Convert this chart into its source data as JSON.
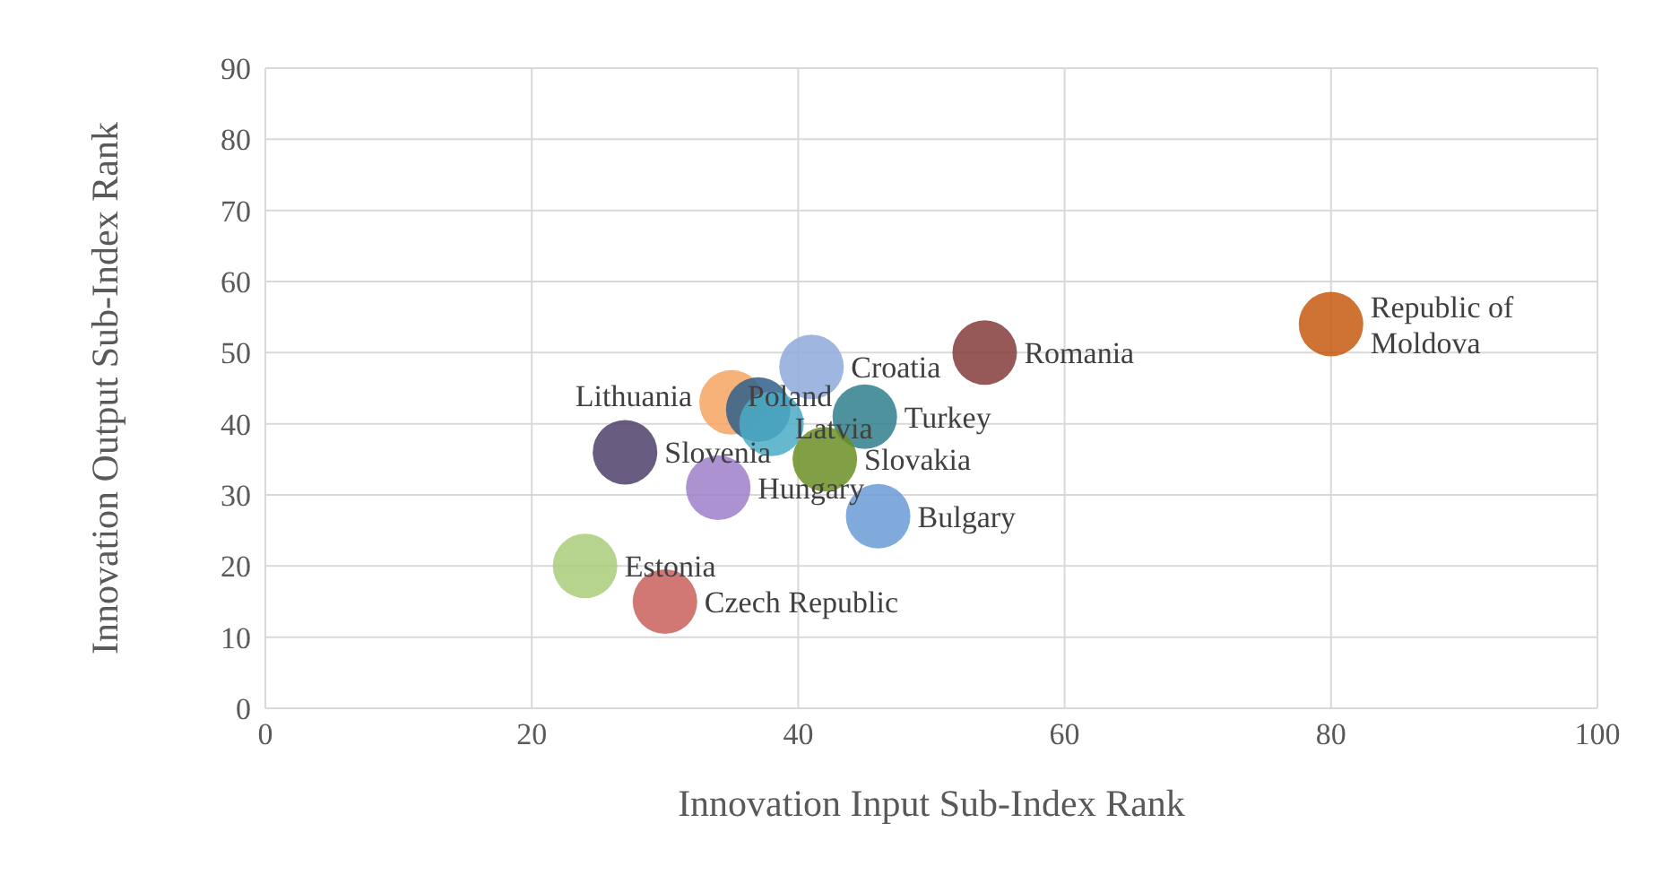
{
  "chart_data": {
    "type": "bubble",
    "xlabel": "Innovation Input Sub-Index Rank",
    "ylabel": "Innovation Output Sub-Index Rank",
    "xlim": [
      0,
      100
    ],
    "xticks": [
      0,
      20,
      40,
      60,
      80,
      100
    ],
    "ylim": [
      0,
      90
    ],
    "yticks": [
      0,
      10,
      20,
      30,
      40,
      50,
      60,
      70,
      80,
      90
    ],
    "grid": true,
    "legend": false,
    "series": [
      {
        "name": "Republic of Moldova",
        "color": "#c55a11",
        "x": [
          80
        ],
        "values": [
          54
        ],
        "sizes": [
          1
        ]
      },
      {
        "name": "Romania",
        "color": "#843c39",
        "x": [
          54
        ],
        "values": [
          50
        ],
        "sizes": [
          1
        ]
      },
      {
        "name": "Lithuania",
        "color": "#f4a460",
        "x": [
          35
        ],
        "values": [
          43
        ],
        "sizes": [
          1
        ]
      },
      {
        "name": "Croatia",
        "color": "#8eaadb",
        "x": [
          41
        ],
        "values": [
          48
        ],
        "sizes": [
          1
        ]
      },
      {
        "name": "Poland",
        "color": "#2f5f8a",
        "x": [
          37
        ],
        "values": [
          42
        ],
        "sizes": [
          1
        ]
      },
      {
        "name": "Latvia",
        "color": "#4bacc6",
        "x": [
          38
        ],
        "values": [
          40
        ],
        "sizes": [
          1
        ]
      },
      {
        "name": "Turkey",
        "color": "#2e7f8c",
        "x": [
          45
        ],
        "values": [
          41
        ],
        "sizes": [
          1
        ]
      },
      {
        "name": "Slovakia",
        "color": "#6b8e23",
        "x": [
          42
        ],
        "values": [
          35
        ],
        "sizes": [
          1
        ]
      },
      {
        "name": "Slovenia",
        "color": "#4f3f6b",
        "x": [
          27
        ],
        "values": [
          36
        ],
        "sizes": [
          1
        ]
      },
      {
        "name": "Hungary",
        "color": "#9e7fc8",
        "x": [
          34
        ],
        "values": [
          31
        ],
        "sizes": [
          1
        ]
      },
      {
        "name": "Bulgary",
        "color": "#6a9bd6",
        "x": [
          46
        ],
        "values": [
          27
        ],
        "sizes": [
          1
        ]
      },
      {
        "name": "Estonia",
        "color": "#a9cc7a",
        "x": [
          24
        ],
        "values": [
          20
        ],
        "sizes": [
          1
        ]
      },
      {
        "name": "Czech Republic",
        "color": "#c9605c",
        "x": [
          30
        ],
        "values": [
          15
        ],
        "sizes": [
          1
        ]
      }
    ]
  }
}
